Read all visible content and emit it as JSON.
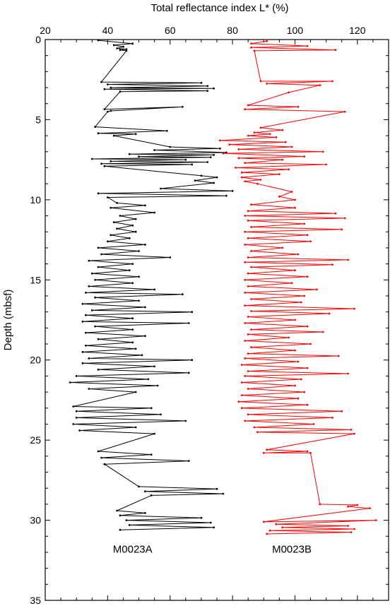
{
  "chart_data": {
    "type": "line",
    "xlabel": "Total reflectance index L* (%)",
    "ylabel": "Depth (mbsf)",
    "xlim": [
      20,
      130
    ],
    "ylim": [
      35,
      0
    ],
    "y_inverted": true,
    "x_axis_position": "top",
    "x_ticks": [
      20,
      40,
      60,
      80,
      100,
      120
    ],
    "y_ticks": [
      0,
      5,
      10,
      15,
      20,
      25,
      30,
      35
    ],
    "grid": false,
    "series": [
      {
        "name": "M0023A",
        "color": "#000000",
        "points": [
          [
            37,
            0.05
          ],
          [
            48,
            0.25
          ],
          [
            42,
            0.35
          ],
          [
            45,
            0.45
          ],
          [
            43,
            0.55
          ],
          [
            46,
            0.6
          ],
          [
            44,
            0.65
          ],
          [
            46,
            0.7
          ],
          [
            38,
            2.65
          ],
          [
            70,
            2.7
          ],
          [
            40,
            2.8
          ],
          [
            72,
            2.9
          ],
          [
            41,
            3.0
          ],
          [
            74,
            3.05
          ],
          [
            39,
            3.1
          ],
          [
            72,
            3.2
          ],
          [
            44,
            3.25
          ],
          [
            39,
            4.35
          ],
          [
            64,
            4.2
          ],
          [
            41,
            4.45
          ],
          [
            40,
            4.5
          ],
          [
            36,
            5.45
          ],
          [
            59,
            5.7
          ],
          [
            37,
            5.85
          ],
          [
            49,
            5.9
          ],
          [
            42,
            6.0
          ],
          [
            60,
            6.7
          ],
          [
            76,
            6.8
          ],
          [
            55,
            6.9
          ],
          [
            78,
            7.05
          ],
          [
            47,
            7.15
          ],
          [
            74,
            7.2
          ],
          [
            50,
            7.3
          ],
          [
            73,
            7.35
          ],
          [
            35,
            7.45
          ],
          [
            65,
            7.5
          ],
          [
            41,
            7.6
          ],
          [
            72,
            7.65
          ],
          [
            38,
            7.75
          ],
          [
            67,
            7.8
          ],
          [
            39,
            7.9
          ],
          [
            70,
            8.5
          ],
          [
            75,
            8.6
          ],
          [
            68,
            8.8
          ],
          [
            74,
            8.95
          ],
          [
            57,
            9.3
          ],
          [
            80,
            9.45
          ],
          [
            37,
            9.6
          ],
          [
            78,
            9.75
          ],
          [
            40,
            9.85
          ],
          [
            43,
            10.2
          ],
          [
            52,
            10.35
          ],
          [
            41,
            10.5
          ],
          [
            55,
            10.8
          ],
          [
            44,
            11.0
          ],
          [
            49,
            11.2
          ],
          [
            42,
            11.4
          ],
          [
            48,
            11.6
          ],
          [
            43,
            11.8
          ],
          [
            49,
            12.0
          ],
          [
            41,
            12.2
          ],
          [
            47,
            12.4
          ],
          [
            40,
            12.6
          ],
          [
            52,
            12.8
          ],
          [
            37,
            13.0
          ],
          [
            50,
            13.2
          ],
          [
            38,
            13.4
          ],
          [
            60,
            13.6
          ],
          [
            34,
            13.8
          ],
          [
            48,
            14.0
          ],
          [
            37,
            14.2
          ],
          [
            47,
            14.4
          ],
          [
            35,
            14.6
          ],
          [
            50,
            14.8
          ],
          [
            36,
            15.0
          ],
          [
            48,
            15.2
          ],
          [
            34,
            15.4
          ],
          [
            55,
            15.6
          ],
          [
            33,
            15.8
          ],
          [
            64,
            15.9
          ],
          [
            36,
            16.1
          ],
          [
            50,
            16.3
          ],
          [
            32,
            16.5
          ],
          [
            52,
            16.7
          ],
          [
            35,
            16.9
          ],
          [
            67,
            17.0
          ],
          [
            33,
            17.2
          ],
          [
            48,
            17.4
          ],
          [
            32,
            17.6
          ],
          [
            66,
            17.7
          ],
          [
            36,
            17.9
          ],
          [
            48,
            18.1
          ],
          [
            33,
            18.3
          ],
          [
            52,
            18.5
          ],
          [
            37,
            18.7
          ],
          [
            48,
            18.9
          ],
          [
            33,
            19.1
          ],
          [
            49,
            19.3
          ],
          [
            32,
            19.5
          ],
          [
            51,
            19.7
          ],
          [
            34,
            19.9
          ],
          [
            67,
            20.0
          ],
          [
            32,
            20.2
          ],
          [
            55,
            20.4
          ],
          [
            37,
            20.6
          ],
          [
            66,
            20.8
          ],
          [
            30,
            21.0
          ],
          [
            53,
            21.2
          ],
          [
            28,
            21.4
          ],
          [
            56,
            21.6
          ],
          [
            34,
            21.8
          ],
          [
            49,
            22.0
          ],
          [
            29,
            22.9
          ],
          [
            54,
            23.0
          ],
          [
            30,
            23.2
          ],
          [
            57,
            23.4
          ],
          [
            30,
            23.6
          ],
          [
            65,
            23.8
          ],
          [
            29,
            24.0
          ],
          [
            49,
            24.2
          ],
          [
            31,
            24.4
          ],
          [
            55,
            24.6
          ],
          [
            37,
            25.7
          ],
          [
            54,
            25.9
          ],
          [
            38,
            26.1
          ],
          [
            66,
            26.3
          ],
          [
            39,
            26.5
          ],
          [
            50,
            27.9
          ],
          [
            75,
            28.05
          ],
          [
            52,
            28.2
          ],
          [
            77,
            28.35
          ],
          [
            54,
            28.45
          ],
          [
            43,
            29.4
          ],
          [
            52,
            29.55
          ],
          [
            44,
            29.7
          ],
          [
            70,
            29.85
          ],
          [
            46,
            30.0
          ],
          [
            73,
            30.15
          ],
          [
            47,
            30.3
          ],
          [
            74,
            30.45
          ],
          [
            44,
            30.6
          ]
        ]
      },
      {
        "name": "M0023B",
        "color": "#ff0000",
        "points": [
          [
            91,
            0.1
          ],
          [
            86,
            0.25
          ],
          [
            104,
            0.4
          ],
          [
            86,
            0.5
          ],
          [
            113,
            0.65
          ],
          [
            87,
            0.7
          ],
          [
            89,
            2.6
          ],
          [
            112,
            2.6
          ],
          [
            91,
            2.75
          ],
          [
            108,
            2.85
          ],
          [
            98,
            3.3
          ],
          [
            85,
            4.1
          ],
          [
            101,
            4.2
          ],
          [
            84,
            4.35
          ],
          [
            116,
            4.5
          ],
          [
            89,
            5.5
          ],
          [
            96,
            5.65
          ],
          [
            87,
            5.8
          ],
          [
            92,
            5.9
          ],
          [
            85,
            6.0
          ],
          [
            94,
            6.1
          ],
          [
            76,
            6.3
          ],
          [
            97,
            6.4
          ],
          [
            79,
            6.55
          ],
          [
            99,
            6.7
          ],
          [
            82,
            6.85
          ],
          [
            109,
            7.0
          ],
          [
            77,
            7.1
          ],
          [
            103,
            7.3
          ],
          [
            82,
            7.4
          ],
          [
            96,
            7.5
          ],
          [
            84,
            7.7
          ],
          [
            110,
            7.8
          ],
          [
            81,
            8.0
          ],
          [
            98,
            8.1
          ],
          [
            83,
            8.3
          ],
          [
            95,
            8.4
          ],
          [
            83,
            8.6
          ],
          [
            89,
            8.75
          ],
          [
            84,
            8.85
          ],
          [
            88,
            9.0
          ],
          [
            99,
            9.5
          ],
          [
            95,
            9.8
          ],
          [
            100,
            10.0
          ],
          [
            86,
            10.3
          ],
          [
            100,
            10.5
          ],
          [
            85,
            10.7
          ],
          [
            113,
            10.85
          ],
          [
            84,
            11.0
          ],
          [
            116,
            11.15
          ],
          [
            85,
            11.3
          ],
          [
            103,
            11.5
          ],
          [
            86,
            11.7
          ],
          [
            115,
            11.85
          ],
          [
            84,
            12.0
          ],
          [
            104,
            12.2
          ],
          [
            85,
            12.4
          ],
          [
            105,
            12.6
          ],
          [
            84,
            12.8
          ],
          [
            96,
            13.0
          ],
          [
            86,
            13.2
          ],
          [
            101,
            13.4
          ],
          [
            85,
            13.6
          ],
          [
            117,
            13.75
          ],
          [
            84,
            13.9
          ],
          [
            112,
            14.05
          ],
          [
            86,
            14.2
          ],
          [
            100,
            14.4
          ],
          [
            85,
            14.6
          ],
          [
            104,
            14.8
          ],
          [
            84,
            15.0
          ],
          [
            99,
            15.2
          ],
          [
            85,
            15.4
          ],
          [
            107,
            15.6
          ],
          [
            84,
            15.8
          ],
          [
            103,
            16.0
          ],
          [
            86,
            16.2
          ],
          [
            102,
            16.4
          ],
          [
            84,
            16.6
          ],
          [
            119,
            16.8
          ],
          [
            86,
            16.95
          ],
          [
            111,
            17.1
          ],
          [
            85,
            17.3
          ],
          [
            100,
            17.5
          ],
          [
            84,
            17.7
          ],
          [
            104,
            17.9
          ],
          [
            86,
            18.1
          ],
          [
            109,
            18.25
          ],
          [
            85,
            18.4
          ],
          [
            98,
            18.6
          ],
          [
            84,
            18.8
          ],
          [
            105,
            19.0
          ],
          [
            86,
            19.2
          ],
          [
            100,
            19.4
          ],
          [
            85,
            19.6
          ],
          [
            114,
            19.75
          ],
          [
            84,
            19.9
          ],
          [
            101,
            20.1
          ],
          [
            83,
            20.3
          ],
          [
            104,
            20.5
          ],
          [
            85,
            20.7
          ],
          [
            117,
            20.85
          ],
          [
            84,
            21.0
          ],
          [
            102,
            21.2
          ],
          [
            83,
            21.4
          ],
          [
            100,
            21.6
          ],
          [
            85,
            21.8
          ],
          [
            103,
            22.0
          ],
          [
            83,
            22.2
          ],
          [
            101,
            22.4
          ],
          [
            82,
            22.6
          ],
          [
            104,
            22.8
          ],
          [
            83,
            23.0
          ],
          [
            115,
            23.2
          ],
          [
            85,
            23.4
          ],
          [
            112,
            23.6
          ],
          [
            84,
            23.8
          ],
          [
            106,
            24.0
          ],
          [
            87,
            24.2
          ],
          [
            118,
            24.35
          ],
          [
            88,
            24.5
          ],
          [
            119,
            24.6
          ],
          [
            91,
            25.6
          ],
          [
            104,
            25.7
          ],
          [
            90,
            25.8
          ],
          [
            105,
            25.8
          ],
          [
            108,
            29.0
          ],
          [
            120,
            29.05
          ],
          [
            117,
            29.15
          ],
          [
            124,
            29.25
          ],
          [
            90,
            30.1
          ],
          [
            126,
            30.0
          ],
          [
            94,
            30.25
          ],
          [
            117,
            30.35
          ],
          [
            96,
            30.45
          ],
          [
            119,
            30.55
          ],
          [
            92,
            30.65
          ],
          [
            118,
            30.75
          ],
          [
            91,
            30.85
          ]
        ]
      }
    ],
    "annotations": [
      {
        "text": "M0023A",
        "x": 48,
        "y": 31.8
      },
      {
        "text": "M0023B",
        "x": 99,
        "y": 31.8
      }
    ]
  }
}
